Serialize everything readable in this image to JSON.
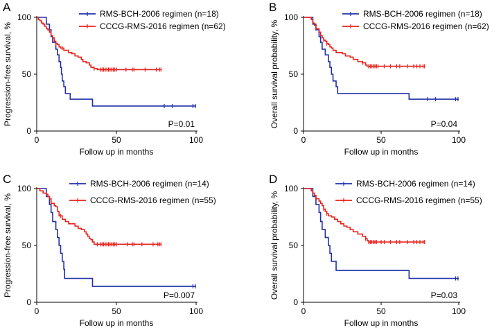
{
  "figure": {
    "colors": {
      "blue": "#1f2fa8",
      "red": "#e8221c",
      "axis": "#000000"
    }
  },
  "chart_data": [
    {
      "panel": "A",
      "type": "line",
      "title": "",
      "xlabel": "Follow up in months",
      "ylabel": "Progression-free survival, %",
      "xlim": [
        0,
        100
      ],
      "ylim": [
        0,
        100
      ],
      "xticks": [
        0,
        50,
        100
      ],
      "yticks": [
        0,
        50,
        100
      ],
      "grid": false,
      "legend_position": "top-right",
      "pvalue": "P=0.01",
      "series": [
        {
          "name": "RMS-BCH-2006 regimen (n=18)",
          "color": "#1f2fa8",
          "steps": [
            [
              0,
              100
            ],
            [
              6,
              94
            ],
            [
              8,
              89
            ],
            [
              9,
              83
            ],
            [
              10,
              78
            ],
            [
              12,
              72
            ],
            [
              13,
              67
            ],
            [
              14,
              61
            ],
            [
              15,
              56
            ],
            [
              15.5,
              50
            ],
            [
              16,
              44
            ],
            [
              17,
              39
            ],
            [
              18,
              33
            ],
            [
              21,
              28
            ],
            [
              35,
              22
            ],
            [
              100,
              22
            ]
          ],
          "censors": [
            80,
            85,
            98,
            99.5
          ]
        },
        {
          "name": "CCCG-RMS-2016 regimen (n=62)",
          "color": "#e8221c",
          "steps": [
            [
              0,
              100
            ],
            [
              1,
              98
            ],
            [
              2,
              97
            ],
            [
              3,
              95
            ],
            [
              4,
              94
            ],
            [
              5,
              92
            ],
            [
              6,
              90
            ],
            [
              7,
              89
            ],
            [
              8,
              87
            ],
            [
              9,
              84
            ],
            [
              10,
              82
            ],
            [
              11,
              79
            ],
            [
              12,
              77
            ],
            [
              13,
              76
            ],
            [
              14,
              74
            ],
            [
              15,
              73
            ],
            [
              17,
              71
            ],
            [
              20,
              69
            ],
            [
              22,
              68
            ],
            [
              24,
              66
            ],
            [
              26,
              65
            ],
            [
              28,
              63
            ],
            [
              29,
              61
            ],
            [
              31,
              60
            ],
            [
              33,
              58
            ],
            [
              34,
              56
            ],
            [
              36,
              55
            ],
            [
              38,
              54
            ],
            [
              78,
              54
            ]
          ],
          "censors": [
            12,
            16,
            36,
            40,
            41,
            42,
            43,
            44,
            45,
            46,
            47,
            48,
            49,
            50,
            56,
            60,
            61,
            68,
            75,
            77,
            78
          ]
        }
      ]
    },
    {
      "panel": "B",
      "type": "line",
      "title": "",
      "xlabel": "Follow up in months",
      "ylabel": "Overall survival probability, %",
      "xlim": [
        0,
        100
      ],
      "ylim": [
        0,
        100
      ],
      "xticks": [
        0,
        50,
        100
      ],
      "yticks": [
        0,
        50,
        100
      ],
      "grid": false,
      "legend_position": "top-right",
      "pvalue": "P=0.04",
      "series": [
        {
          "name": "RMS-BCH-2006 regimen (n=18)",
          "color": "#1f2fa8",
          "steps": [
            [
              0,
              100
            ],
            [
              6,
              94
            ],
            [
              8,
              89
            ],
            [
              10,
              83
            ],
            [
              11,
              78
            ],
            [
              12,
              72
            ],
            [
              14,
              67
            ],
            [
              16,
              61
            ],
            [
              17,
              56
            ],
            [
              18,
              50
            ],
            [
              19,
              44
            ],
            [
              21,
              39
            ],
            [
              22,
              33
            ],
            [
              68,
              28
            ],
            [
              100,
              28
            ]
          ],
          "censors": [
            80,
            85,
            98,
            99.5
          ]
        },
        {
          "name": "CCCG-RMS-2016 regimen (n=62)",
          "color": "#e8221c",
          "steps": [
            [
              0,
              100
            ],
            [
              5,
              98
            ],
            [
              6,
              95
            ],
            [
              7,
              93
            ],
            [
              8,
              90
            ],
            [
              10,
              87
            ],
            [
              11,
              84
            ],
            [
              12,
              82
            ],
            [
              13,
              80
            ],
            [
              14,
              79
            ],
            [
              15,
              77
            ],
            [
              16,
              76
            ],
            [
              17,
              74
            ],
            [
              18,
              73
            ],
            [
              19,
              71
            ],
            [
              21,
              69
            ],
            [
              25,
              68
            ],
            [
              27,
              66
            ],
            [
              30,
              65
            ],
            [
              32,
              63
            ],
            [
              35,
              61
            ],
            [
              38,
              60
            ],
            [
              40,
              58
            ],
            [
              41,
              57
            ],
            [
              78,
              57
            ]
          ],
          "censors": [
            13,
            15,
            38,
            42,
            43,
            44,
            45,
            46,
            47,
            48,
            52,
            56,
            60,
            62,
            67,
            71,
            73,
            75,
            77,
            78
          ]
        }
      ]
    },
    {
      "panel": "C",
      "type": "line",
      "title": "",
      "xlabel": "Follow up in months",
      "ylabel": "Progression-free survival, %",
      "xlim": [
        0,
        100
      ],
      "ylim": [
        0,
        100
      ],
      "xticks": [
        0,
        50,
        100
      ],
      "yticks": [
        0,
        50,
        100
      ],
      "grid": false,
      "legend_position": "top-right",
      "pvalue": "P=0.007",
      "series": [
        {
          "name": "RMS-BCH-2006 regimen (n=14)",
          "color": "#1f2fa8",
          "steps": [
            [
              0,
              100
            ],
            [
              6,
              93
            ],
            [
              8,
              86
            ],
            [
              9,
              79
            ],
            [
              10,
              71
            ],
            [
              12,
              64
            ],
            [
              13,
              57
            ],
            [
              14,
              50
            ],
            [
              15,
              43
            ],
            [
              16,
              36
            ],
            [
              17,
              29
            ],
            [
              17.5,
              21
            ],
            [
              35,
              14
            ],
            [
              100,
              14
            ]
          ],
          "censors": [
            98,
            99.5
          ]
        },
        {
          "name": "CCCG-RMS-2016 regimen (n=55)",
          "color": "#e8221c",
          "steps": [
            [
              0,
              100
            ],
            [
              2,
              98
            ],
            [
              4,
              96
            ],
            [
              6,
              95
            ],
            [
              7,
              93
            ],
            [
              8,
              91
            ],
            [
              9,
              87
            ],
            [
              11,
              85
            ],
            [
              12,
              84
            ],
            [
              13,
              80
            ],
            [
              14,
              76
            ],
            [
              16,
              73
            ],
            [
              18,
              71
            ],
            [
              20,
              69
            ],
            [
              24,
              67
            ],
            [
              26,
              65
            ],
            [
              28,
              64
            ],
            [
              30,
              62
            ],
            [
              31,
              60
            ],
            [
              32,
              58
            ],
            [
              33,
              56
            ],
            [
              34,
              55
            ],
            [
              35,
              53
            ],
            [
              36,
              51
            ],
            [
              78,
              51
            ]
          ],
          "censors": [
            15,
            38,
            40,
            41,
            42,
            43,
            44,
            45,
            46,
            47,
            48,
            49,
            50,
            57,
            60,
            61,
            66,
            73,
            76,
            77,
            78
          ]
        }
      ]
    },
    {
      "panel": "D",
      "type": "line",
      "title": "",
      "xlabel": "Follow up in months",
      "ylabel": "Overall survival probability, %",
      "xlim": [
        0,
        100
      ],
      "ylim": [
        0,
        100
      ],
      "xticks": [
        0,
        50,
        100
      ],
      "yticks": [
        0,
        50,
        100
      ],
      "grid": false,
      "legend_position": "top-right",
      "pvalue": "P=0.03",
      "series": [
        {
          "name": "RMS-BCH-2006 regimen (n=14)",
          "color": "#1f2fa8",
          "steps": [
            [
              0,
              100
            ],
            [
              6,
              93
            ],
            [
              8,
              86
            ],
            [
              10,
              79
            ],
            [
              11,
              71
            ],
            [
              12,
              64
            ],
            [
              14,
              57
            ],
            [
              16,
              50
            ],
            [
              17,
              43
            ],
            [
              18,
              36
            ],
            [
              21,
              28
            ],
            [
              68,
              21
            ],
            [
              100,
              21
            ]
          ],
          "censors": [
            98,
            99.5
          ]
        },
        {
          "name": "CCCG-RMS-2016 regimen (n=55)",
          "color": "#e8221c",
          "steps": [
            [
              0,
              100
            ],
            [
              5,
              98
            ],
            [
              6,
              96
            ],
            [
              7,
              94
            ],
            [
              8,
              91
            ],
            [
              10,
              89
            ],
            [
              11,
              87
            ],
            [
              12,
              85
            ],
            [
              13,
              82
            ],
            [
              14,
              80
            ],
            [
              15,
              78
            ],
            [
              16,
              76
            ],
            [
              18,
              75
            ],
            [
              20,
              73
            ],
            [
              22,
              71
            ],
            [
              24,
              69
            ],
            [
              26,
              67
            ],
            [
              28,
              66
            ],
            [
              30,
              64
            ],
            [
              32,
              62
            ],
            [
              35,
              60
            ],
            [
              38,
              58
            ],
            [
              40,
              56
            ],
            [
              41,
              54
            ],
            [
              42,
              53
            ],
            [
              78,
              53
            ]
          ],
          "censors": [
            13,
            15,
            40,
            42,
            43,
            44,
            45,
            46,
            47,
            50,
            52,
            56,
            60,
            62,
            67,
            71,
            73,
            75,
            77,
            78
          ]
        }
      ]
    }
  ]
}
